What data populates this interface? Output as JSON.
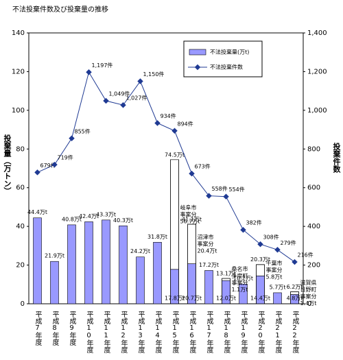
{
  "chart_data": {
    "type": "bar-line",
    "title": "不法投棄件数及び投棄量の推移",
    "ylabel": "投棄量（万トン）",
    "y2label": "投棄件数",
    "categories": [
      "平成7年度",
      "平成8年度",
      "平成9年度",
      "平成10年度",
      "平成11年度",
      "平成12年度",
      "平成13年度",
      "平成14年度",
      "平成15年度",
      "平成16年度",
      "平成17年度",
      "平成18年度",
      "平成19年度",
      "平成20年度",
      "平成21年度",
      "平成22年度"
    ],
    "ylim": [
      0,
      140
    ],
    "yticks": [
      0,
      20,
      40,
      60,
      80,
      100,
      120,
      140
    ],
    "y2lim": [
      0,
      1400
    ],
    "y2ticks": [
      0,
      200,
      400,
      600,
      800,
      {
        "value": 1000,
        "label": "1,000"
      },
      {
        "value": 1200,
        "label": "1,200"
      },
      {
        "value": 1400,
        "label": "1,400"
      }
    ],
    "series": [
      {
        "name": "不法投棄量(万t)",
        "kind": "bar",
        "color": "#9999ff",
        "values": [
          44.4,
          21.9,
          40.8,
          42.4,
          43.3,
          40.3,
          24.2,
          31.8,
          17.8,
          20.7,
          17.2,
          12.0,
          10.2,
          14.4,
          5.7,
          4.8
        ],
        "value_labels": [
          "44.4万t",
          "21.9万t",
          "40.8万t",
          "42.4万t",
          "43.3万t",
          "40.3万t",
          "24.2万t",
          "31.8万t",
          "17.8万t",
          "20.7万t",
          "17.2万t",
          "12.0万t",
          "10.2万t",
          "14.4万t",
          "5.7万t",
          "4.8万t"
        ]
      },
      {
        "kind": "bar",
        "color": "#ffffff",
        "values": [
          null,
          null,
          null,
          null,
          null,
          null,
          null,
          null,
          56.7,
          20.4,
          null,
          1.1,
          null,
          5.8,
          null,
          1.4
        ],
        "value_labels": [
          null,
          null,
          null,
          null,
          null,
          null,
          null,
          null,
          "56.7万t",
          "20.4万t",
          null,
          "1.1万t",
          null,
          "5.8万t",
          null,
          "1.4万t"
        ],
        "notes": [
          null,
          null,
          null,
          null,
          null,
          null,
          null,
          null,
          [
            "岐阜市",
            "事案分"
          ],
          [
            "沼津市",
            "事案分"
          ],
          null,
          [
            "桑名市",
            "多度町",
            "事案分"
          ],
          null,
          [
            "千葉市",
            "事案分"
          ],
          null,
          [
            "滋賀県",
            "日野町",
            "事案分"
          ]
        ],
        "totals": [
          null,
          null,
          null,
          null,
          null,
          null,
          null,
          null,
          74.5,
          41.1,
          null,
          13.1,
          null,
          20.3,
          null,
          6.2
        ],
        "total_labels": [
          null,
          null,
          null,
          null,
          null,
          null,
          null,
          null,
          "74.5万t",
          "41.1万t",
          null,
          "13.1万t",
          null,
          "20.3万t",
          null,
          "6.2万t"
        ]
      },
      {
        "name": "不法投棄件数",
        "kind": "line",
        "axis": "y2",
        "color": "#1f3a93",
        "values": [
          679,
          719,
          855,
          1197,
          1049,
          1027,
          1150,
          934,
          894,
          673,
          558,
          554,
          382,
          308,
          279,
          216
        ],
        "value_labels": [
          "679件",
          "719件",
          "855件",
          "1,197件",
          "1,049件",
          "1,027件",
          "1,150件",
          "934件",
          "894件",
          "673件",
          "558件",
          "554件",
          "382件",
          "308件",
          "279件",
          "216件"
        ]
      }
    ]
  }
}
